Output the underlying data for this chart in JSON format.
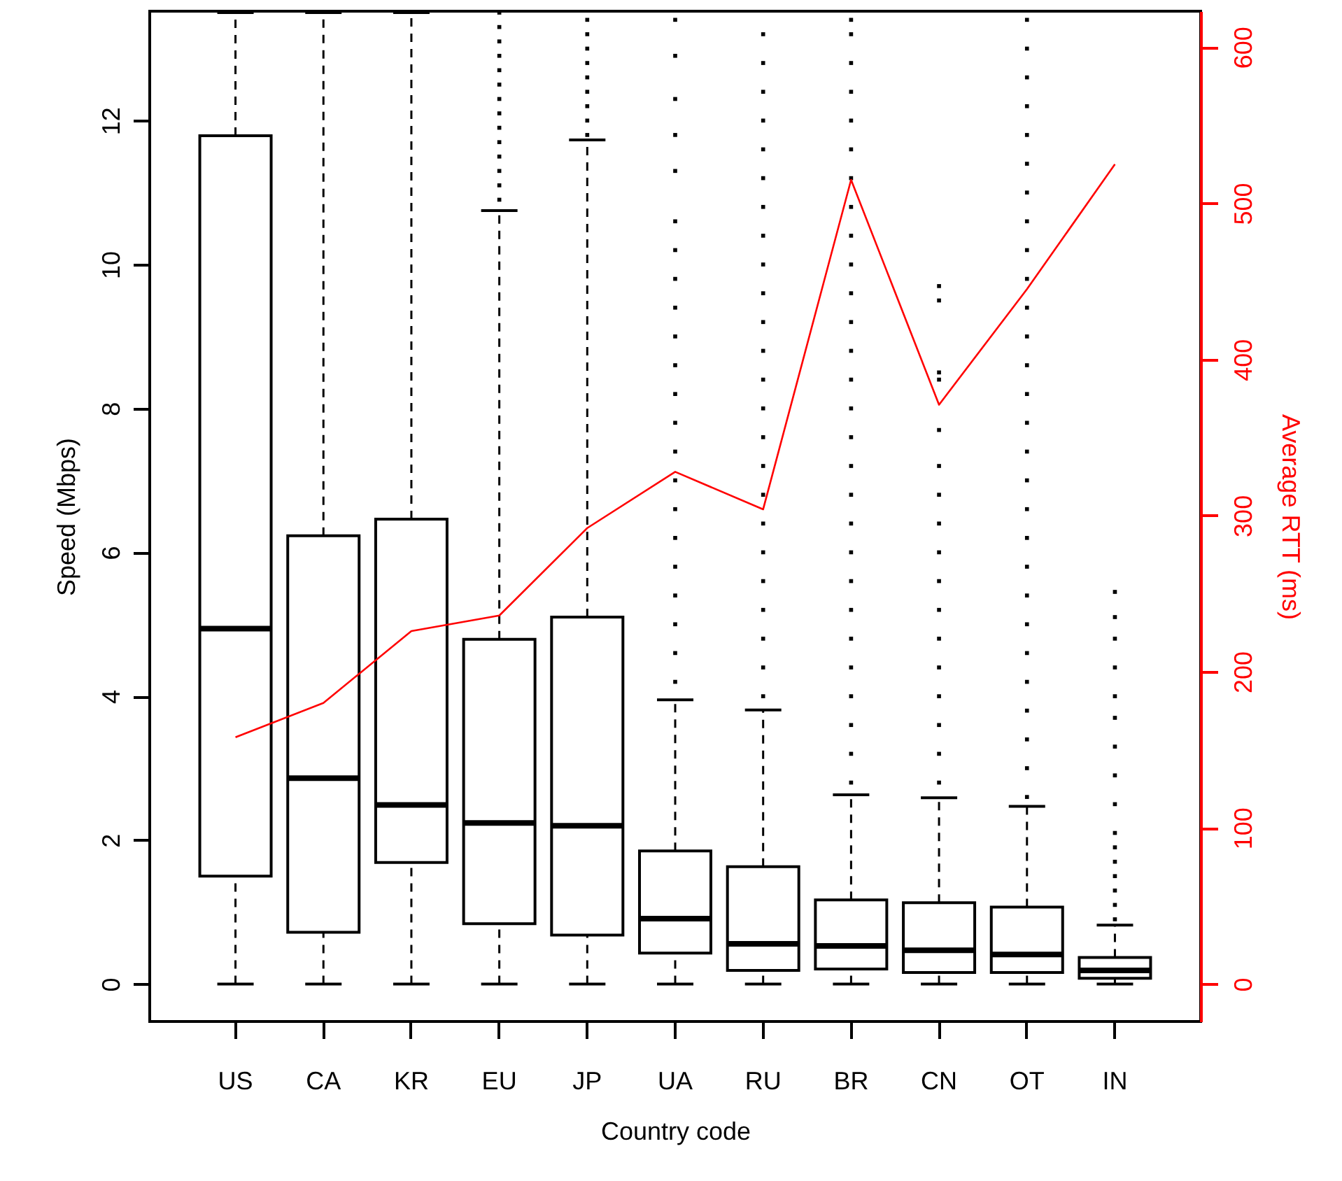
{
  "chart_data": {
    "type": "box",
    "xlabel": "Country code",
    "ylabel": "Speed (Mbps)",
    "y2label": "Average RTT (ms)",
    "categories": [
      "US",
      "CA",
      "KR",
      "EU",
      "JP",
      "UA",
      "RU",
      "BR",
      "CN",
      "OT",
      "IN"
    ],
    "boxes": [
      {
        "low": 0,
        "q1": 1.5,
        "median": 4.94,
        "q3": 11.79,
        "high": 13.5
      },
      {
        "low": 0,
        "q1": 0.72,
        "median": 2.86,
        "q3": 6.23,
        "high": 13.5
      },
      {
        "low": 0,
        "q1": 1.69,
        "median": 2.49,
        "q3": 6.46,
        "high": 13.5
      },
      {
        "low": 0,
        "q1": 0.84,
        "median": 2.24,
        "q3": 4.79,
        "high": 10.75,
        "outliers": [
          10.9,
          11.1,
          11.3,
          11.5,
          11.7,
          11.9,
          12.1,
          12.3,
          12.5,
          12.7,
          12.9,
          13.1,
          13.3,
          13.5
        ]
      },
      {
        "low": 0,
        "q1": 0.68,
        "median": 2.2,
        "q3": 5.1,
        "high": 11.73,
        "outliers": [
          11.8,
          12.0,
          12.2,
          12.4,
          12.6,
          12.8,
          13.0,
          13.2,
          13.4
        ]
      },
      {
        "low": 0,
        "q1": 0.43,
        "median": 0.91,
        "q3": 1.85,
        "high": 3.95,
        "outliers": [
          4.2,
          4.6,
          5.0,
          5.4,
          5.8,
          6.2,
          6.6,
          7.0,
          7.4,
          7.8,
          8.2,
          8.6,
          9.0,
          9.4,
          9.8,
          10.2,
          10.6,
          11.3,
          11.8,
          12.3,
          12.9,
          13.4
        ]
      },
      {
        "low": 0,
        "q1": 0.19,
        "median": 0.56,
        "q3": 1.63,
        "high": 3.81,
        "outliers": [
          4.0,
          4.4,
          4.8,
          5.2,
          5.6,
          6.0,
          6.4,
          6.8,
          7.2,
          7.6,
          8.0,
          8.4,
          8.8,
          9.2,
          9.6,
          10.0,
          10.4,
          10.8,
          11.2,
          11.6,
          12.0,
          12.4,
          12.8,
          13.2
        ]
      },
      {
        "low": 0,
        "q1": 0.21,
        "median": 0.53,
        "q3": 1.17,
        "high": 2.63,
        "outliers": [
          2.8,
          3.2,
          3.6,
          4.0,
          4.4,
          4.8,
          5.2,
          5.6,
          6.0,
          6.4,
          6.8,
          7.2,
          7.6,
          8.0,
          8.4,
          8.8,
          9.2,
          9.6,
          10.0,
          10.4,
          10.8,
          11.2,
          11.6,
          12.0,
          12.4,
          12.8,
          13.2,
          13.4
        ]
      },
      {
        "low": 0,
        "q1": 0.16,
        "median": 0.47,
        "q3": 1.13,
        "high": 2.59,
        "outliers": [
          2.8,
          3.2,
          3.6,
          4.0,
          4.4,
          4.8,
          5.2,
          5.6,
          6.0,
          6.4,
          6.8,
          7.2,
          7.7,
          8.4,
          8.5,
          9.5,
          9.7
        ]
      },
      {
        "low": 0,
        "q1": 0.16,
        "median": 0.41,
        "q3": 1.07,
        "high": 2.47,
        "outliers": [
          2.6,
          3.0,
          3.4,
          3.8,
          4.2,
          4.6,
          5.0,
          5.4,
          5.8,
          6.2,
          6.6,
          7.0,
          7.4,
          7.8,
          8.2,
          8.6,
          9.0,
          9.4,
          9.8,
          10.2,
          10.6,
          11.0,
          11.4,
          11.8,
          12.2,
          12.6,
          13.0,
          13.4
        ]
      },
      {
        "low": 0,
        "q1": 0.08,
        "median": 0.19,
        "q3": 0.37,
        "high": 0.82,
        "outliers": [
          0.9,
          1.1,
          1.3,
          1.5,
          1.7,
          1.9,
          2.1,
          2.5,
          2.9,
          3.3,
          3.7,
          4.0,
          4.4,
          4.8,
          5.1,
          5.45
        ]
      }
    ],
    "series": [
      {
        "type": "line",
        "axis": "y2",
        "color": "#ff0000",
        "values": [
          158,
          180,
          226,
          236,
          292,
          328,
          304,
          515,
          371,
          445,
          525
        ]
      }
    ],
    "ylim": [
      -0.52,
      13.52
    ],
    "yticks": [
      0,
      2,
      4,
      6,
      8,
      10,
      12
    ],
    "y2lim": [
      -24,
      623
    ],
    "y2ticks": [
      0,
      100,
      200,
      300,
      400,
      500,
      600
    ],
    "grid": false
  }
}
